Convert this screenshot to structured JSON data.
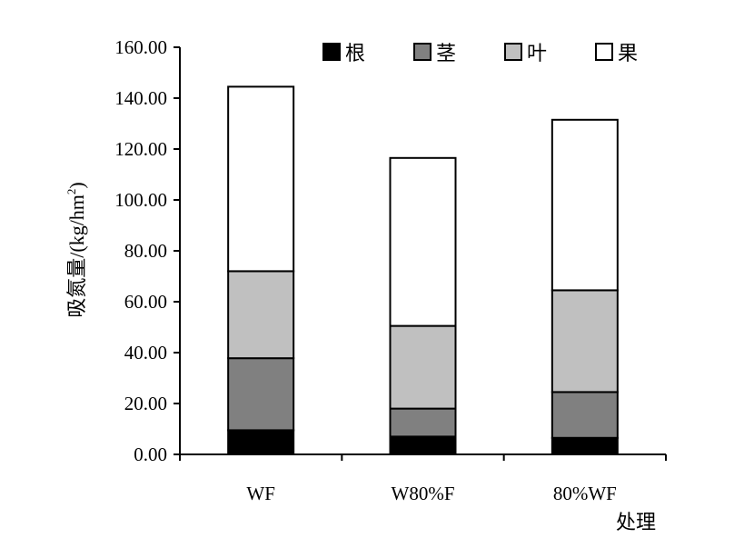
{
  "chart_data": {
    "type": "bar",
    "stacked": true,
    "categories": [
      "WF",
      "W80%F",
      "80%WF"
    ],
    "series": [
      {
        "name": "根",
        "values": [
          9.5,
          7.0,
          6.5
        ],
        "color": "#000000"
      },
      {
        "name": "茎",
        "values": [
          28.3,
          11.0,
          18.0
        ],
        "color": "#808080"
      },
      {
        "name": "叶",
        "values": [
          34.2,
          32.5,
          40.0
        ],
        "color": "#c0c0c0"
      },
      {
        "name": "果",
        "values": [
          72.5,
          66.0,
          67.0
        ],
        "color": "#ffffff"
      }
    ],
    "ylabel_main": "吸氮量/(kg/hm",
    "ylabel_sup": "2",
    "ylabel_tail": ")",
    "xlabel": "处理",
    "ylim": [
      0,
      160
    ],
    "ytick_values": [
      0,
      20,
      40,
      60,
      80,
      100,
      120,
      140,
      160
    ],
    "ytick_labels": [
      "0.00",
      "20.00",
      "40.00",
      "60.00",
      "80.00",
      "100.00",
      "120.00",
      "140.00",
      "160.00"
    ],
    "grid": false,
    "legend_position": "top-right"
  }
}
